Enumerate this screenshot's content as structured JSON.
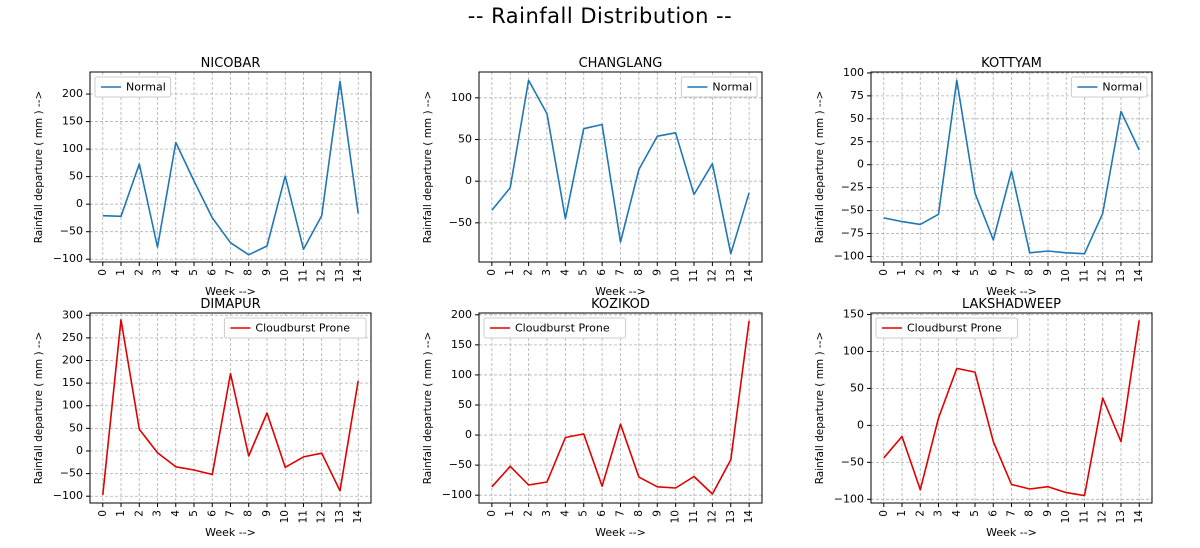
{
  "figure": {
    "title": "--  Rainfall Distribution  --"
  },
  "colors": {
    "normal": "#1f77b4",
    "cloudburst": "#e00000",
    "grid": "#b0b0b0"
  },
  "chart_data": [
    {
      "type": "line",
      "title": "NICOBAR",
      "xlabel": "Week -->",
      "ylabel": "Rainfall departure ( mm ) -->",
      "legend": {
        "label": "Normal",
        "loc": "upper-left"
      },
      "color": "#1f77b4",
      "grid": true,
      "xlim": [
        -0.7,
        14.7
      ],
      "ylim": [
        -105,
        240
      ],
      "yticks": [
        -100,
        -50,
        0,
        50,
        100,
        150,
        200
      ],
      "x": [
        0,
        1,
        2,
        3,
        4,
        5,
        6,
        7,
        8,
        9,
        10,
        11,
        12,
        13,
        14
      ],
      "y": [
        -21,
        -22,
        73,
        -78,
        112,
        42,
        -25,
        -70,
        -92,
        -76,
        51,
        -82,
        -21,
        223,
        -17
      ]
    },
    {
      "type": "line",
      "title": "CHANGLANG",
      "xlabel": "Week -->",
      "ylabel": "Rainfall departure ( mm ) -->",
      "legend": {
        "label": "Normal",
        "loc": "upper-right"
      },
      "color": "#1f77b4",
      "grid": true,
      "xlim": [
        -0.7,
        14.7
      ],
      "ylim": [
        -97,
        131
      ],
      "yticks": [
        -50,
        0,
        50,
        100
      ],
      "x": [
        0,
        1,
        2,
        3,
        4,
        5,
        6,
        7,
        8,
        9,
        10,
        11,
        12,
        13,
        14
      ],
      "y": [
        -35,
        -8,
        121,
        81,
        -45,
        63,
        68,
        -73,
        14,
        54,
        58,
        -16,
        21,
        -87,
        -14
      ]
    },
    {
      "type": "line",
      "title": "KOTTYAM",
      "xlabel": "Week -->",
      "ylabel": "Rainfall departure ( mm ) -->",
      "legend": {
        "label": "Normal",
        "loc": "upper-right"
      },
      "color": "#1f77b4",
      "grid": true,
      "xlim": [
        -0.7,
        14.7
      ],
      "ylim": [
        -106,
        101
      ],
      "yticks": [
        -100,
        -75,
        -50,
        -25,
        0,
        25,
        50,
        75,
        100
      ],
      "x": [
        0,
        1,
        2,
        3,
        4,
        5,
        6,
        7,
        8,
        9,
        10,
        11,
        12,
        13,
        14
      ],
      "y": [
        -58,
        -62,
        -65,
        -54,
        92,
        -31,
        -82,
        -7,
        -96,
        -94,
        -96,
        -97,
        -53,
        58,
        16
      ]
    },
    {
      "type": "line",
      "title": "DIMAPUR",
      "xlabel": "Week -->",
      "ylabel": "Rainfall departure ( mm ) -->",
      "legend": {
        "label": "Cloudburst Prone",
        "loc": "upper-right"
      },
      "color": "#e00000",
      "grid": true,
      "xlim": [
        -0.7,
        14.7
      ],
      "ylim": [
        -115,
        305
      ],
      "yticks": [
        -100,
        -50,
        0,
        50,
        100,
        150,
        200,
        250,
        300
      ],
      "x": [
        0,
        1,
        2,
        3,
        4,
        5,
        6,
        7,
        8,
        9,
        10,
        11,
        12,
        13,
        14
      ],
      "y": [
        -97,
        290,
        48,
        -4,
        -35,
        -42,
        -52,
        171,
        -11,
        84,
        -36,
        -13,
        -5,
        -88,
        155
      ]
    },
    {
      "type": "line",
      "title": "KOZIKOD",
      "xlabel": "Week -->",
      "ylabel": "Rainfall departure ( mm ) -->",
      "legend": {
        "label": "Cloudburst Prone",
        "loc": "upper-left"
      },
      "color": "#e00000",
      "grid": true,
      "xlim": [
        -0.7,
        14.7
      ],
      "ylim": [
        -113,
        203
      ],
      "yticks": [
        -100,
        -50,
        0,
        50,
        100,
        150,
        200
      ],
      "x": [
        0,
        1,
        2,
        3,
        4,
        5,
        6,
        7,
        8,
        9,
        10,
        11,
        12,
        13,
        14
      ],
      "y": [
        -86,
        -52,
        -83,
        -78,
        -4,
        2,
        -85,
        18,
        -70,
        -86,
        -88,
        -69,
        -98,
        -41,
        190
      ]
    },
    {
      "type": "line",
      "title": "LAKSHADWEEP",
      "xlabel": "Week -->",
      "ylabel": "Rainfall departure ( mm ) -->",
      "legend": {
        "label": "Cloudburst Prone",
        "loc": "upper-left"
      },
      "color": "#e00000",
      "grid": true,
      "xlim": [
        -0.7,
        14.7
      ],
      "ylim": [
        -105,
        152
      ],
      "yticks": [
        -100,
        -50,
        0,
        50,
        100,
        150
      ],
      "x": [
        0,
        1,
        2,
        3,
        4,
        5,
        6,
        7,
        8,
        9,
        10,
        11,
        12,
        13,
        14
      ],
      "y": [
        -44,
        -15,
        -87,
        10,
        77,
        72,
        -22,
        -80,
        -86,
        -83,
        -91,
        -95,
        37,
        -22,
        142
      ]
    }
  ]
}
